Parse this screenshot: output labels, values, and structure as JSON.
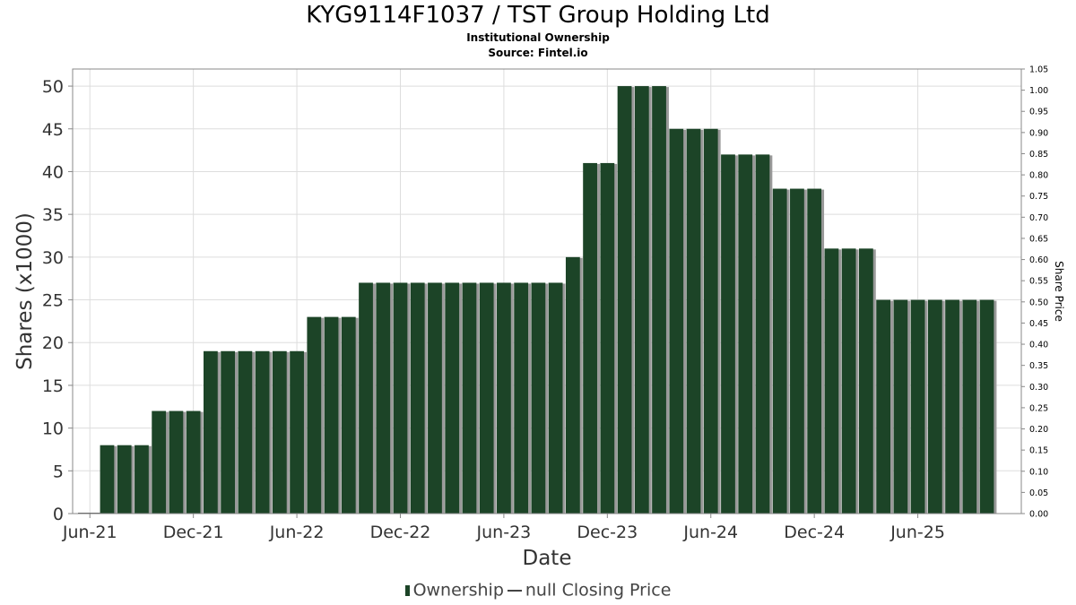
{
  "header": {
    "title": "KYG9114F1037 / TST Group Holding Ltd",
    "subtitle": "Institutional Ownership",
    "source": "Source: Fintel.io"
  },
  "legend": {
    "ownership": "Ownership",
    "price": "null Closing Price"
  },
  "colors": {
    "bar": "#1c4427",
    "bar_shadow": "#999999",
    "grid": "#dddddd",
    "axis_text": "#333333"
  },
  "chart_data": {
    "type": "bar",
    "xlabel": "Date",
    "ylabel": "Shares (x1000)",
    "y2label": "Share Price",
    "ylim": [
      0,
      52
    ],
    "y2lim": [
      0,
      1.05
    ],
    "yticks": [
      0,
      5,
      10,
      15,
      20,
      25,
      30,
      35,
      40,
      45,
      50
    ],
    "y2ticks": [
      "0.00",
      "0.05",
      "0.10",
      "0.15",
      "0.20",
      "0.25",
      "0.30",
      "0.35",
      "0.40",
      "0.45",
      "0.50",
      "0.55",
      "0.60",
      "0.65",
      "0.70",
      "0.75",
      "0.80",
      "0.85",
      "0.90",
      "0.95",
      "1.00",
      "1.05"
    ],
    "xticks": [
      "Jun-21",
      "Dec-21",
      "Jun-22",
      "Dec-22",
      "Jun-23",
      "Dec-23",
      "Jun-24",
      "Dec-24",
      "Jun-25"
    ],
    "x_start": "2021-05",
    "x_end": "2025-12",
    "grid": true,
    "legend_position": "bottom",
    "series": [
      {
        "name": "Ownership",
        "months": [
          "2021-07",
          "2021-08",
          "2021-09",
          "2021-10",
          "2021-11",
          "2021-12",
          "2022-01",
          "2022-02",
          "2022-03",
          "2022-04",
          "2022-05",
          "2022-06",
          "2022-07",
          "2022-08",
          "2022-09",
          "2022-10",
          "2022-11",
          "2022-12",
          "2023-01",
          "2023-02",
          "2023-03",
          "2023-04",
          "2023-05",
          "2023-06",
          "2023-07",
          "2023-08",
          "2023-09",
          "2023-10",
          "2023-11",
          "2023-12",
          "2024-01",
          "2024-02",
          "2024-03",
          "2024-04",
          "2024-05",
          "2024-06",
          "2024-07",
          "2024-08",
          "2024-09",
          "2024-10",
          "2024-11",
          "2024-12",
          "2025-01",
          "2025-02",
          "2025-03",
          "2025-04",
          "2025-05",
          "2025-06",
          "2025-07",
          "2025-08",
          "2025-09",
          "2025-10"
        ],
        "values": [
          8,
          8,
          8,
          12,
          12,
          12,
          19,
          19,
          19,
          19,
          19,
          19,
          23,
          23,
          23,
          27,
          27,
          27,
          27,
          27,
          27,
          27,
          27,
          27,
          27,
          27,
          27,
          30,
          41,
          41,
          50,
          50,
          50,
          45,
          45,
          45,
          42,
          42,
          42,
          38,
          38,
          38,
          31,
          31,
          31,
          25,
          25,
          25,
          25,
          25,
          25,
          25
        ]
      }
    ]
  }
}
